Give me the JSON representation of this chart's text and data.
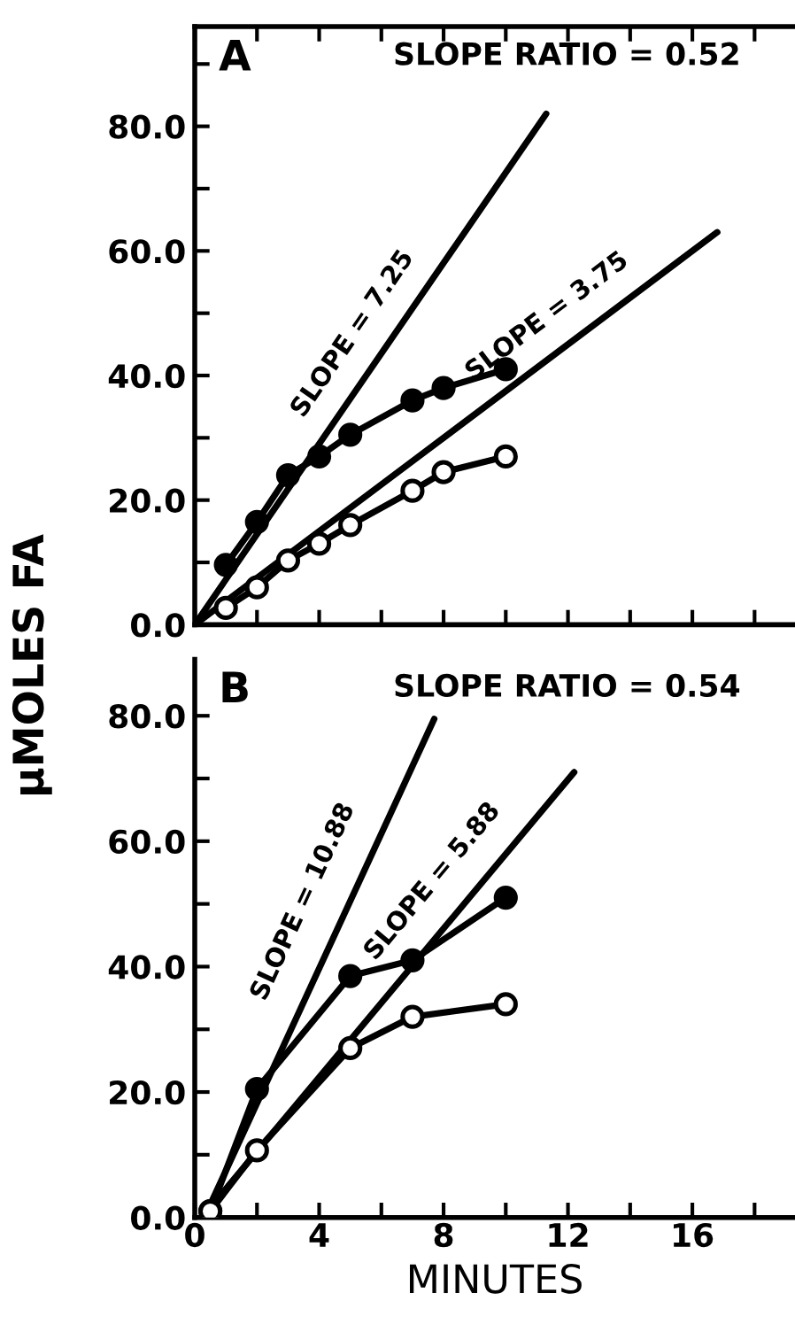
{
  "chart_data": [
    {
      "type": "line",
      "title": "A",
      "ylabel": "µMOLES FA",
      "tick_labels": "y",
      "grid": false,
      "xlim": [
        0,
        19.3
      ],
      "xticks": [
        {
          "value": 0,
          "label": null
        },
        {
          "value": 2,
          "label": null
        },
        {
          "value": 4,
          "label": null
        },
        {
          "value": 6,
          "label": null
        },
        {
          "value": 8,
          "label": null
        },
        {
          "value": 10,
          "label": null
        },
        {
          "value": 12,
          "label": null
        },
        {
          "value": 14,
          "label": null
        },
        {
          "value": 16,
          "label": null
        },
        {
          "value": 18,
          "label": null
        }
      ],
      "ylim": [
        0,
        96
      ],
      "yticks": [
        {
          "value": 0,
          "label": "0.0"
        },
        {
          "value": 10,
          "label": null
        },
        {
          "value": 20,
          "label": "20.0"
        },
        {
          "value": 30,
          "label": null
        },
        {
          "value": 40,
          "label": "40.0"
        },
        {
          "value": 50,
          "label": null
        },
        {
          "value": 60,
          "label": "60.0"
        },
        {
          "value": 70,
          "label": null
        },
        {
          "value": 80,
          "label": "80.0"
        },
        {
          "value": 90,
          "label": null
        }
      ],
      "annotations": [
        "SLOPE RATIO = 0.52",
        {
          "text": "SLOPE = 7.25",
          "x": 6,
          "y": 43.5
        },
        {
          "text": "SLOPE = 3.75",
          "x": 12,
          "y": 45
        }
      ],
      "series": [
        {
          "color": "#000000",
          "marker": "circle",
          "x": [
            1,
            2,
            3,
            4,
            5,
            7,
            8,
            10
          ],
          "values": [
            9.6,
            16.5,
            24,
            27,
            30.5,
            36,
            38,
            41
          ]
        },
        {
          "color": "#000000",
          "marker": "circle_open",
          "x": [
            1,
            2,
            3,
            4,
            5,
            7,
            8,
            10
          ],
          "values": [
            2.7,
            6,
            10.3,
            13,
            16,
            21.5,
            24.5,
            27
          ]
        },
        {
          "color": "#000000",
          "marker": "none",
          "x": [
            0,
            11.3
          ],
          "values": [
            0,
            82
          ]
        },
        {
          "color": "#000000",
          "marker": "none",
          "x": [
            0,
            16.8
          ],
          "values": [
            0,
            63
          ]
        }
      ]
    },
    {
      "type": "line",
      "title": "B",
      "xlabel": "MINUTES",
      "grid": false,
      "xlim": [
        0,
        19.3
      ],
      "xticks": [
        0,
        {
          "value": 2,
          "label": null
        },
        4,
        {
          "value": 6,
          "label": null
        },
        8,
        {
          "value": 10,
          "label": null
        },
        12,
        {
          "value": 14,
          "label": null
        },
        16,
        {
          "value": 18,
          "label": null
        }
      ],
      "ylim": [
        0,
        89
      ],
      "yticks": [
        {
          "value": 0,
          "label": "0.0"
        },
        {
          "value": 10,
          "label": null
        },
        {
          "value": 20,
          "label": "20.0"
        },
        {
          "value": 30,
          "label": null
        },
        {
          "value": 40,
          "label": "40.0"
        },
        {
          "value": 50,
          "label": null
        },
        {
          "value": 60,
          "label": "60.0"
        },
        {
          "value": 70,
          "label": null
        },
        {
          "value": 80,
          "label": "80.0"
        }
      ],
      "annotations": [
        "SLOPE RATIO = 0.54",
        {
          "text": "SLOPE = 10.88",
          "x": 4.5,
          "y": 48
        },
        {
          "text": "SLOPE = 5.88",
          "x": 8.5,
          "y": 50
        }
      ],
      "series": [
        {
          "color": "#000000",
          "marker": "circle",
          "x": [
            0.5,
            2,
            5,
            7,
            10
          ],
          "values": [
            1,
            20.5,
            38.5,
            41,
            51
          ]
        },
        {
          "color": "#000000",
          "marker": "circle_open",
          "x": [
            0.5,
            2,
            5,
            7,
            10
          ],
          "values": [
            1,
            10.7,
            27,
            32,
            34
          ]
        },
        {
          "color": "#000000",
          "marker": "none",
          "x": [
            0.4,
            7.7
          ],
          "values": [
            1,
            79.5
          ]
        },
        {
          "color": "#000000",
          "marker": "none",
          "x": [
            0.4,
            12.2
          ],
          "values": [
            1,
            71
          ]
        }
      ]
    }
  ]
}
